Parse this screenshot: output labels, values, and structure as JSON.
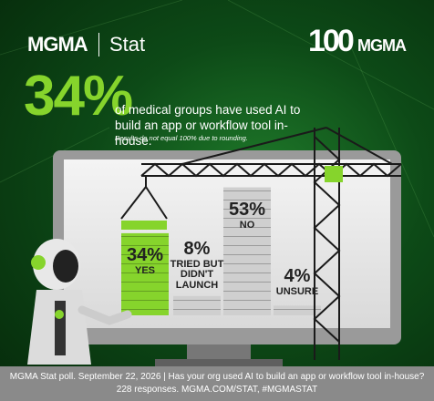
{
  "header": {
    "brand": "MGMA",
    "section": "Stat",
    "logo_number": "100",
    "logo_brand": "MGMA"
  },
  "headline": "34%",
  "subtitle": "of medical groups have used AI to build an app or workflow tool in-house.",
  "note": "Results do not equal 100% due to rounding.",
  "chart_data": {
    "type": "bar",
    "categories": [
      "YES",
      "TRIED BUT DIDN'T LAUNCH",
      "NO",
      "UNSURE"
    ],
    "values": [
      34,
      8,
      53,
      4
    ],
    "value_labels": [
      "34%",
      "8%",
      "53%",
      "4%"
    ],
    "colors": [
      "#86d42c",
      "#cfcfcf",
      "#cfcfcf",
      "#cfcfcf"
    ]
  },
  "footer": {
    "line1": "MGMA Stat poll. September 22, 2026  |  Has your org used AI to build an app or workflow tool in-house?",
    "line2": "228 responses. MGMA.COM/STAT, #MGMASTAT"
  }
}
